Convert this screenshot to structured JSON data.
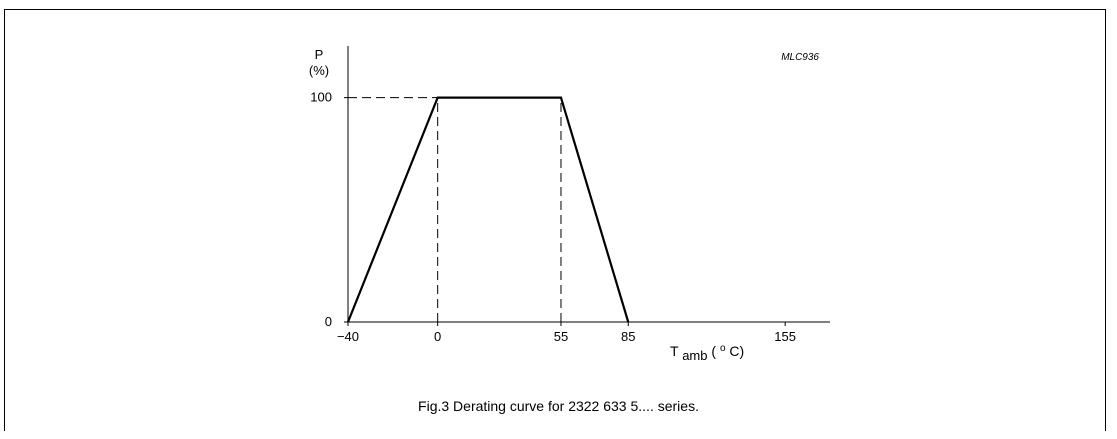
{
  "chart_data": {
    "type": "line",
    "figure_id": "MLC936",
    "caption": "Fig.3  Derating curve for 2322 633 5.... series.",
    "ylabel_symbol": "P",
    "ylabel_unit": "(%)",
    "xlabel_main": "T",
    "xlabel_sub": "amb",
    "xlabel_unit_open": " (",
    "xlabel_unit_sup": "o",
    "xlabel_unit_close": "C)",
    "xlim": [
      -40,
      175
    ],
    "ylim": [
      0,
      123
    ],
    "xticks": [
      {
        "value": -40,
        "label": "−40"
      },
      {
        "value": 0,
        "label": "0"
      },
      {
        "value": 55,
        "label": "55"
      },
      {
        "value": 85,
        "label": "85"
      },
      {
        "value": 155,
        "label": "155"
      }
    ],
    "yticks": [
      {
        "value": 0,
        "label": "0"
      },
      {
        "value": 100,
        "label": "100"
      }
    ],
    "series": [
      {
        "x": [
          -40,
          0,
          55,
          85
        ],
        "y": [
          0,
          100,
          100,
          0
        ]
      }
    ],
    "dashed_guides": [
      {
        "from": [
          -40,
          100
        ],
        "to": [
          0,
          100
        ]
      },
      {
        "from": [
          0,
          0
        ],
        "to": [
          0,
          100
        ]
      },
      {
        "from": [
          55,
          0
        ],
        "to": [
          55,
          100
        ]
      }
    ]
  }
}
